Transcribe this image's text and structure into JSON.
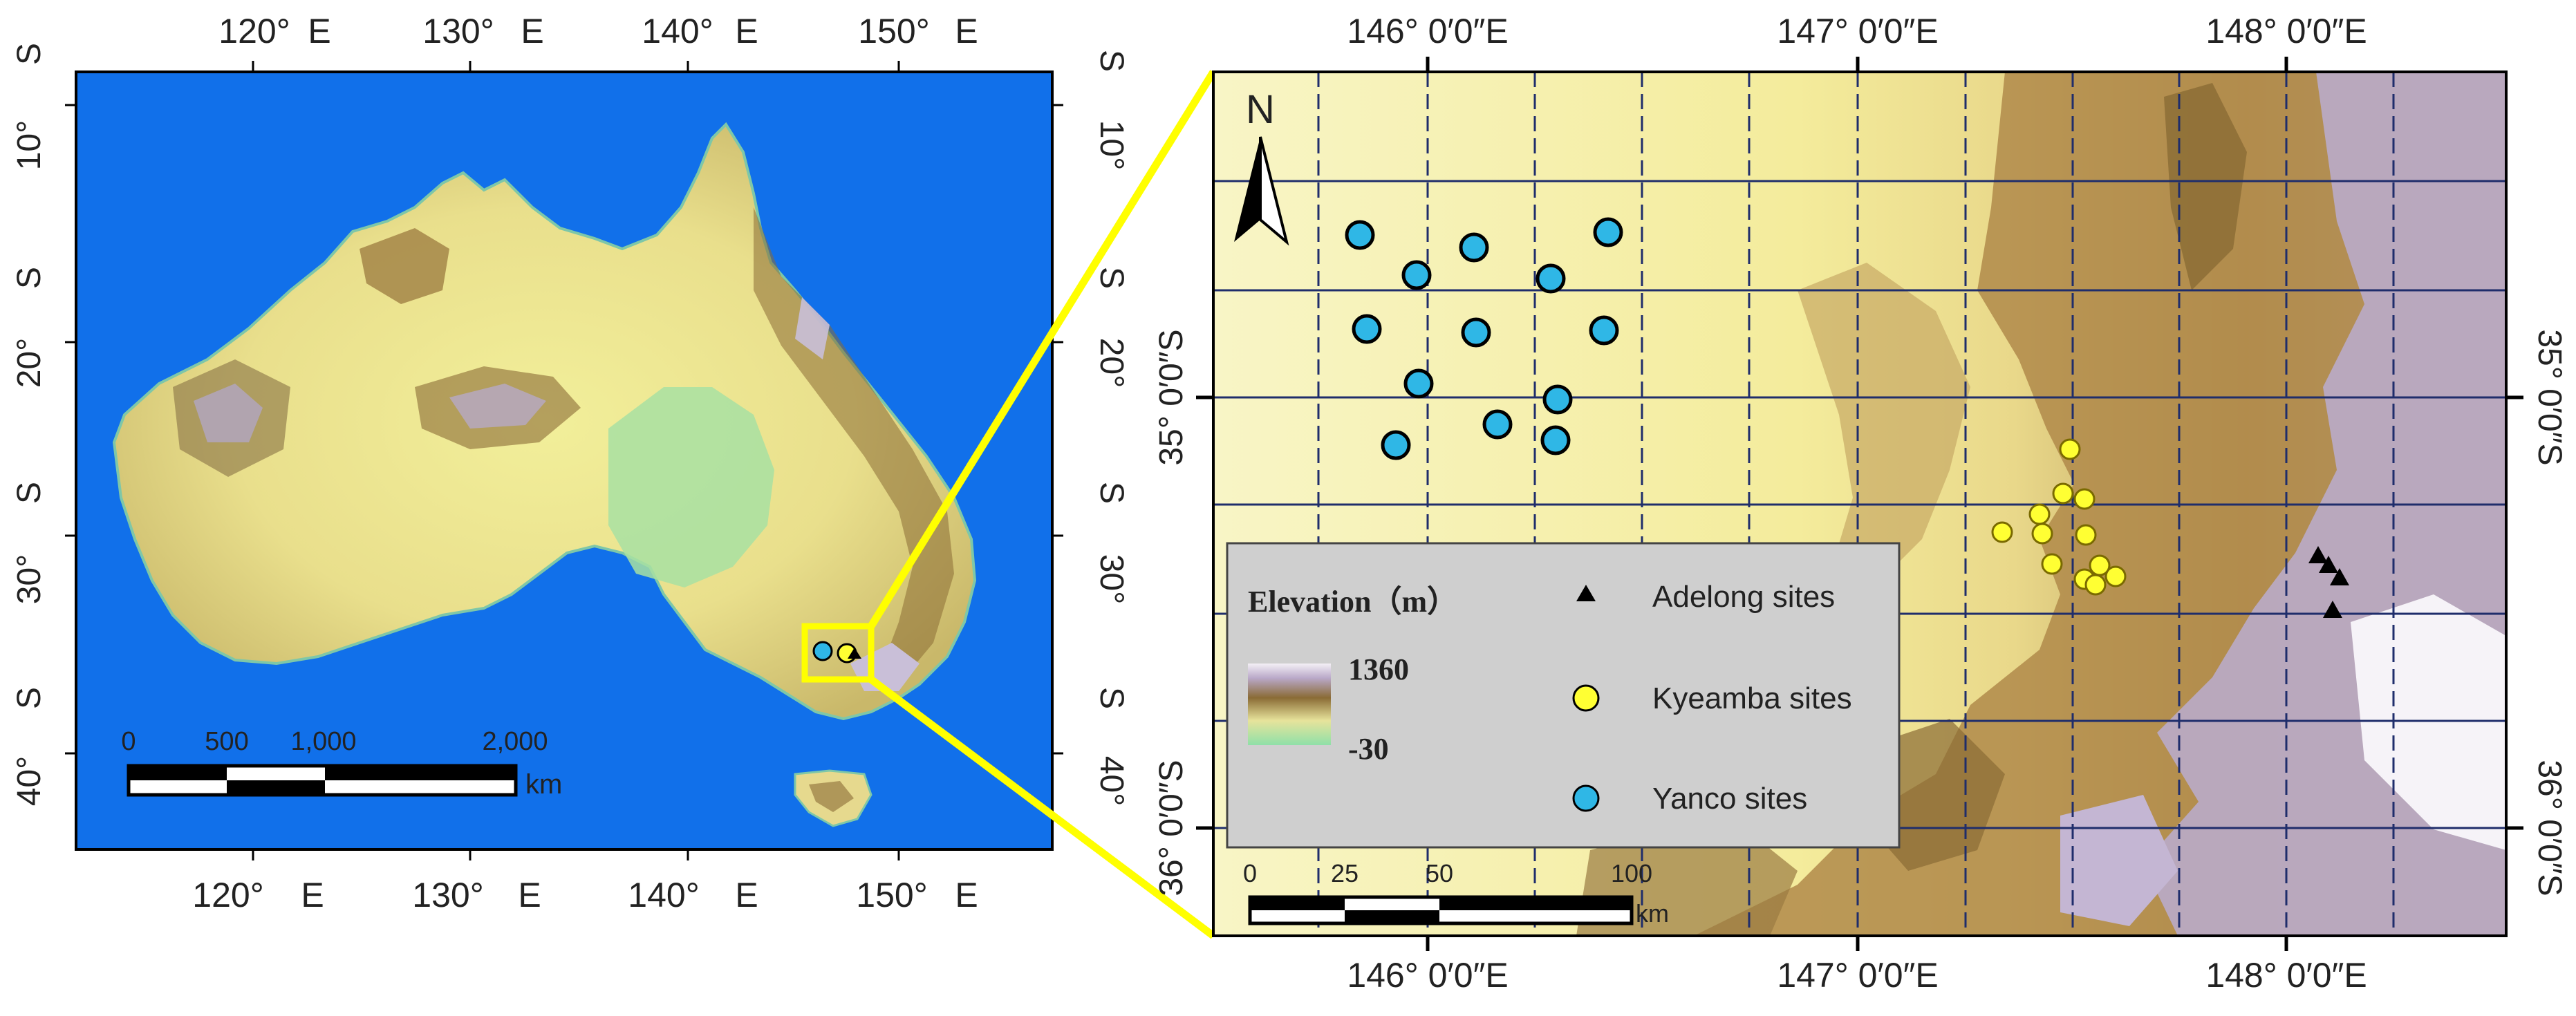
{
  "left_map": {
    "top_lon_labels": [
      "120°",
      "E",
      "130°",
      "E",
      "140°",
      "E",
      "150°",
      "E"
    ],
    "bottom_lon_labels": [
      "120°",
      "E",
      "130°",
      "E",
      "140°",
      "E",
      "150°",
      "E"
    ],
    "lat_labels": [
      {
        "deg": "10°",
        "hem": "S"
      },
      {
        "deg": "20°",
        "hem": "S"
      },
      {
        "deg": "30°",
        "hem": "S"
      },
      {
        "deg": "40°",
        "hem": "S"
      }
    ],
    "edge_hem": "S",
    "scale_ticks": [
      "0",
      "500",
      "1,000",
      "2,000"
    ],
    "scale_unit": "km",
    "colors": {
      "ocean": "#1170ea",
      "lowland": "#e6e39a",
      "highland": "#8a6b35",
      "peak": "#b7a9c7",
      "highlight_box": "#ffff00"
    }
  },
  "right_map": {
    "top_lon_labels": [
      "146° 0′0″E",
      "147° 0′0″E",
      "148° 0′0″E"
    ],
    "bottom_lon_labels": [
      "146° 0′0″E",
      "147° 0′0″E",
      "148° 0′0″E"
    ],
    "lat_labels_right": [
      "35° 0′0″S",
      "36° 0′0″S"
    ],
    "lat_labels_left": [
      "35° 0′0″S",
      "36° 0′0″S"
    ],
    "north_arrow": "N",
    "legend": {
      "title": "Elevation（m）",
      "max": "1360",
      "min": "-30",
      "items": [
        {
          "label": "Adelong sites",
          "symbol": "triangle",
          "color": "#000000"
        },
        {
          "label": "Kyeamba sites",
          "symbol": "circle",
          "color": "#ffff33"
        },
        {
          "label": "Yanco sites",
          "symbol": "circle",
          "color": "#2fb7e6"
        }
      ]
    },
    "scale_ticks": [
      "0",
      "25",
      "50",
      "100"
    ],
    "scale_unit": "km",
    "colors": {
      "grid": "#1f2d6b",
      "legend_bg": "#cfcfcf"
    }
  }
}
